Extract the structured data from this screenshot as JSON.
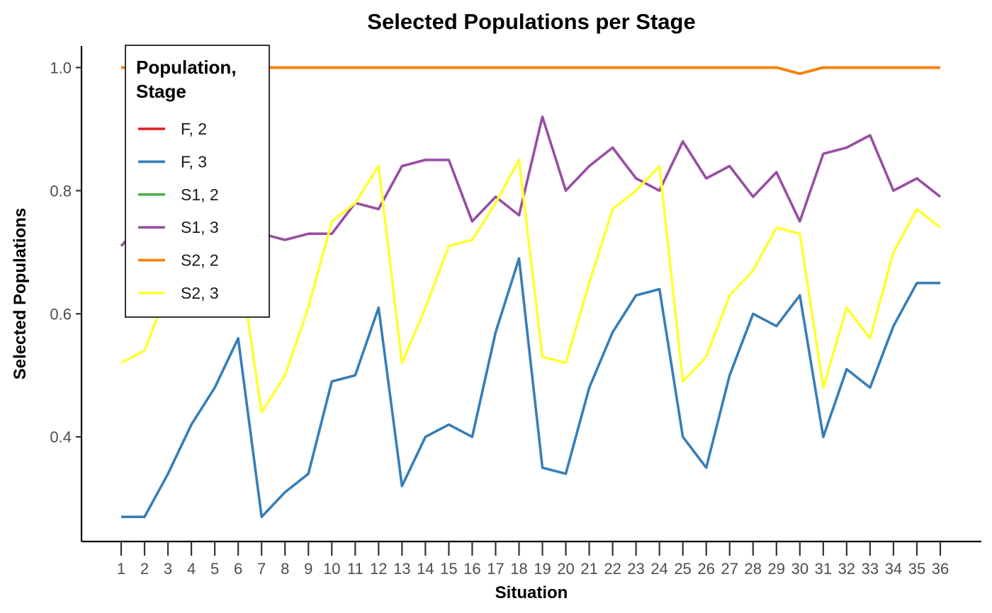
{
  "chart_data": {
    "type": "line",
    "title": "Selected Populations per Stage",
    "xlabel": "Situation",
    "ylabel": "Selected Populations",
    "x": [
      1,
      2,
      3,
      4,
      5,
      6,
      7,
      8,
      9,
      10,
      11,
      12,
      13,
      14,
      15,
      16,
      17,
      18,
      19,
      20,
      21,
      22,
      23,
      24,
      25,
      26,
      27,
      28,
      29,
      30,
      31,
      32,
      33,
      34,
      35,
      36
    ],
    "x_tick_labels": [
      "1",
      "2",
      "3",
      "4",
      "5",
      "6",
      "7",
      "8",
      "9",
      "10",
      "11",
      "12",
      "13",
      "14",
      "15",
      "16",
      "17",
      "18",
      "19",
      "20",
      "21",
      "22",
      "23",
      "24",
      "25",
      "26",
      "27",
      "28",
      "29",
      "30",
      "31",
      "32",
      "33",
      "34",
      "35",
      "36"
    ],
    "ylim": [
      0.23,
      1.035
    ],
    "y_ticks": [
      0.4,
      0.6,
      0.8,
      1.0
    ],
    "y_tick_labels": [
      "0.4",
      "0.6",
      "0.8",
      "1.0"
    ],
    "grid": false,
    "legend": {
      "title_lines": [
        "Population,",
        "Stage"
      ],
      "position": "top-left"
    },
    "series": [
      {
        "name": "F, 2",
        "color": "#e41a1c",
        "values": [
          1,
          1,
          1,
          1,
          1,
          1,
          1,
          1,
          1,
          1,
          1,
          1,
          1,
          1,
          1,
          1,
          1,
          1,
          1,
          1,
          1,
          1,
          1,
          1,
          1,
          1,
          1,
          1,
          1,
          0.99,
          1,
          1,
          1,
          1,
          1,
          1
        ]
      },
      {
        "name": "F, 3",
        "color": "#377eb8",
        "values": [
          0.27,
          0.27,
          0.34,
          0.42,
          0.48,
          0.56,
          0.27,
          0.31,
          0.34,
          0.49,
          0.5,
          0.61,
          0.32,
          0.4,
          0.42,
          0.4,
          0.57,
          0.69,
          0.35,
          0.34,
          0.48,
          0.57,
          0.63,
          0.64,
          0.4,
          0.35,
          0.5,
          0.6,
          0.58,
          0.63,
          0.4,
          0.51,
          0.48,
          0.58,
          0.65,
          0.65
        ]
      },
      {
        "name": "S1, 2",
        "color": "#4daf4a",
        "values": [
          1,
          1,
          1,
          1,
          1,
          1,
          1,
          1,
          1,
          1,
          1,
          1,
          1,
          1,
          1,
          1,
          1,
          1,
          1,
          1,
          1,
          1,
          1,
          1,
          1,
          1,
          1,
          1,
          1,
          0.99,
          1,
          1,
          1,
          1,
          1,
          1
        ]
      },
      {
        "name": "S1, 3",
        "color": "#984ea3",
        "values": [
          0.71,
          0.75,
          0.73,
          0.74,
          0.75,
          0.74,
          0.73,
          0.72,
          0.73,
          0.73,
          0.78,
          0.77,
          0.84,
          0.85,
          0.85,
          0.75,
          0.79,
          0.76,
          0.92,
          0.8,
          0.84,
          0.87,
          0.82,
          0.8,
          0.88,
          0.82,
          0.84,
          0.79,
          0.83,
          0.75,
          0.86,
          0.87,
          0.89,
          0.8,
          0.82,
          0.79
        ]
      },
      {
        "name": "S2, 2",
        "color": "#ff7f00",
        "values": [
          1,
          1,
          1,
          1,
          1,
          1,
          1,
          1,
          1,
          1,
          1,
          1,
          1,
          1,
          1,
          1,
          1,
          1,
          1,
          1,
          1,
          1,
          1,
          1,
          1,
          1,
          1,
          1,
          1,
          0.99,
          1,
          1,
          1,
          1,
          1,
          1
        ]
      },
      {
        "name": "S2, 3",
        "color": "#ffff33",
        "values": [
          0.52,
          0.54,
          0.64,
          0.66,
          0.68,
          0.7,
          0.44,
          0.5,
          0.61,
          0.75,
          0.78,
          0.84,
          0.52,
          0.61,
          0.71,
          0.72,
          0.78,
          0.85,
          0.53,
          0.52,
          0.65,
          0.77,
          0.8,
          0.84,
          0.49,
          0.53,
          0.63,
          0.67,
          0.74,
          0.73,
          0.48,
          0.61,
          0.56,
          0.7,
          0.77,
          0.74
        ]
      }
    ]
  }
}
